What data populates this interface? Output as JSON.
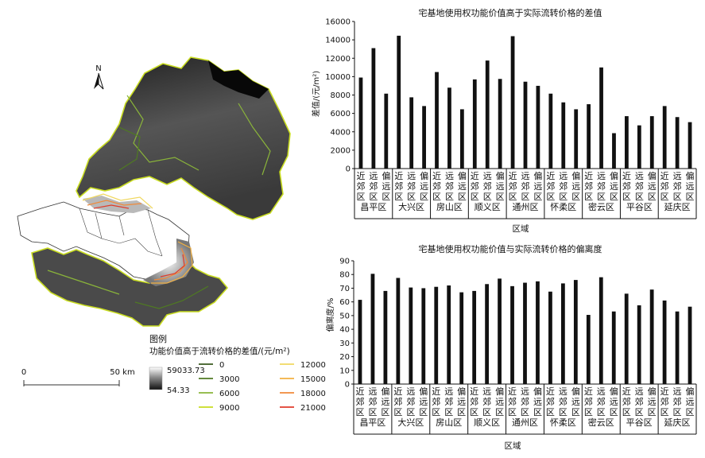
{
  "map": {
    "north_label": "N",
    "legend_title": "图例",
    "legend_subtitle": "功能价值高于流转价格的差值/(元/m²)",
    "gradient_max": "59033.73",
    "gradient_min": "54.33",
    "scale_zero": "0",
    "scale_label": "50 km",
    "contours": [
      {
        "label": "0",
        "color": "#3a5a1f"
      },
      {
        "label": "3000",
        "color": "#4f7a22"
      },
      {
        "label": "6000",
        "color": "#8ab43a"
      },
      {
        "label": "9000",
        "color": "#c8dc20"
      },
      {
        "label": "12000",
        "color": "#f0d860"
      },
      {
        "label": "15000",
        "color": "#f2b040"
      },
      {
        "label": "18000",
        "color": "#f08a3a"
      },
      {
        "label": "21000",
        "color": "#e03c2c"
      }
    ]
  },
  "chart_data": [
    {
      "type": "bar",
      "title": "宅基地使用权功能价值高于实际流转价格的差值",
      "xlabel": "区域",
      "ylabel": "差值/(元/m²)",
      "ylim": [
        0,
        16000
      ],
      "yticks": [
        "0",
        "2000",
        "4000",
        "6000",
        "8000",
        "10000",
        "12000",
        "14000",
        "16000"
      ],
      "groups": [
        "昌平区",
        "大兴区",
        "房山区",
        "顺义区",
        "通州区",
        "怀柔区",
        "密云区",
        "平谷区",
        "延庆区"
      ],
      "subcategories": [
        "近郊区",
        "远郊区",
        "偏远区"
      ],
      "values": [
        9900,
        13100,
        8150,
        14450,
        7750,
        6800,
        10500,
        8800,
        6450,
        9700,
        11750,
        9750,
        14400,
        9450,
        9000,
        8150,
        7200,
        6450,
        7000,
        11000,
        3850,
        5700,
        4700,
        5700,
        6800,
        5600,
        5050
      ],
      "bar_color": "#111111"
    },
    {
      "type": "bar",
      "title": "宅基地使用权功能价值与实际流转价格的偏离度",
      "xlabel": "区域",
      "ylabel": "偏离度/%",
      "ylim": [
        0,
        90
      ],
      "yticks": [
        "0",
        "10",
        "20",
        "30",
        "40",
        "50",
        "60",
        "70",
        "80",
        "90"
      ],
      "groups": [
        "昌平区",
        "大兴区",
        "房山区",
        "顺义区",
        "通州区",
        "怀柔区",
        "密云区",
        "平谷区",
        "延庆区"
      ],
      "subcategories": [
        "近郊区",
        "远郊区",
        "偏远区"
      ],
      "values": [
        61.5,
        80.5,
        68,
        77.5,
        70.5,
        70,
        71,
        72,
        67,
        68,
        73,
        77,
        71.5,
        74,
        75,
        67.5,
        73.5,
        76,
        50.5,
        78,
        53,
        66,
        57.5,
        69,
        61,
        53,
        56.5
      ],
      "bar_color": "#111111"
    }
  ]
}
